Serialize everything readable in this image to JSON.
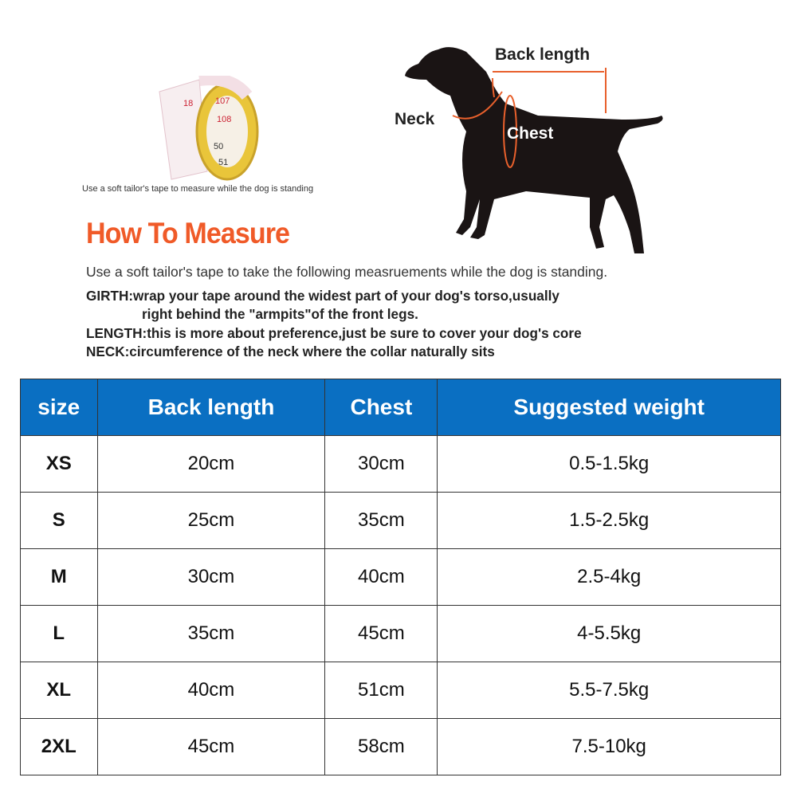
{
  "tape_caption": "Use a soft tailor's tape to measure while the dog is standing",
  "tape_numbers": [
    "18",
    "107",
    "108",
    "50",
    "51"
  ],
  "dog_labels": {
    "back_length": "Back length",
    "neck": "Neck",
    "chest": "Chest"
  },
  "colors": {
    "title": "#f05a28",
    "header": "#0a6fc2",
    "measure_line": "#e8602c"
  },
  "title": "How To Measure",
  "intro": "Use a soft tailor's tape to take the following measruements while the dog is standing.",
  "instructions": {
    "girth": "GIRTH:wrap your tape around the widest part of your dog's torso,usually",
    "girth_cont": "right behind the \"armpits\"of the front legs.",
    "length": "LENGTH:this is more about preference,just be sure to cover your dog's core",
    "neck": "NECK:circumference of the neck where the collar naturally sits"
  },
  "table": {
    "headers": [
      "size",
      "Back length",
      "Chest",
      "Suggested weight"
    ],
    "rows": [
      [
        "XS",
        "20cm",
        "30cm",
        "0.5-1.5kg"
      ],
      [
        "S",
        "25cm",
        "35cm",
        "1.5-2.5kg"
      ],
      [
        "M",
        "30cm",
        "40cm",
        "2.5-4kg"
      ],
      [
        "L",
        "35cm",
        "45cm",
        "4-5.5kg"
      ],
      [
        "XL",
        "40cm",
        "51cm",
        "5.5-7.5kg"
      ],
      [
        "2XL",
        "45cm",
        "58cm",
        "7.5-10kg"
      ]
    ]
  }
}
